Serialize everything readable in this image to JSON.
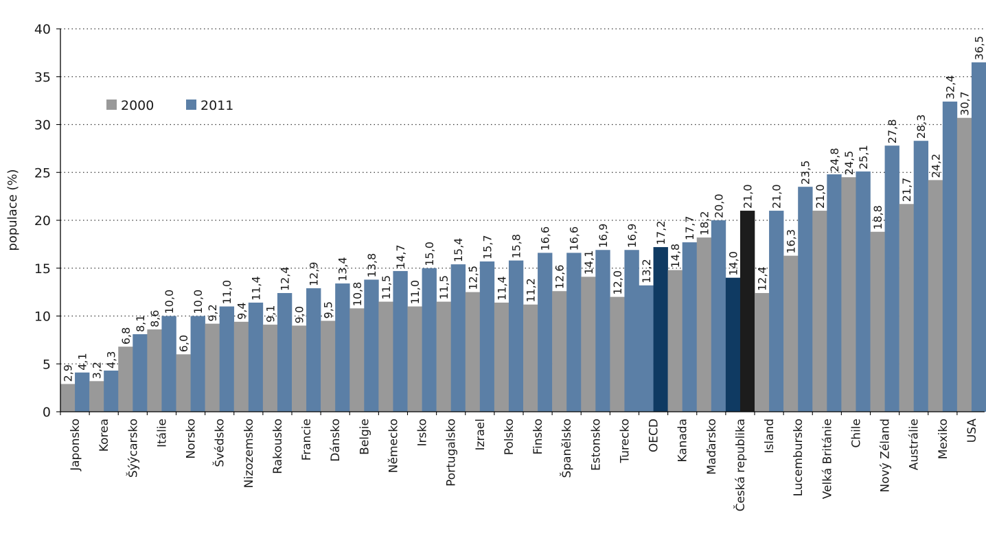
{
  "chart_data": {
    "type": "bar",
    "title": "",
    "xlabel": "",
    "ylabel": "populace (%)",
    "ylim": [
      0,
      40
    ],
    "yticks": [
      0,
      5,
      10,
      15,
      20,
      25,
      30,
      35,
      40
    ],
    "grid": "horizontal-dotted",
    "legend_position": "top-left",
    "categories": [
      "Japonsko",
      "Korea",
      "Šýýcarsko",
      "Itálie",
      "Norsko",
      "Švédsko",
      "Nizozemsko",
      "Rakousko",
      "Francie",
      "Dánsko",
      "Belgie",
      "Německo",
      "Irsko",
      "Portugalsko",
      "Izrael",
      "Polsko",
      "Finsko",
      "Španělsko",
      "Estonsko",
      "Turecko",
      "OECD",
      "Kanada",
      "Maďarsko",
      "Česká republika",
      "Island",
      "Lucembursko",
      "Velká Británie",
      "Chile",
      "Nový Zéland",
      "Austrálie",
      "Mexiko",
      "USA"
    ],
    "series": [
      {
        "name": "2000",
        "color": "#999999",
        "values": [
          2.9,
          3.2,
          6.8,
          8.6,
          6.0,
          9.2,
          9.4,
          9.1,
          9.0,
          9.5,
          10.8,
          11.5,
          11.0,
          11.5,
          12.5,
          11.4,
          11.2,
          12.6,
          14.1,
          12.0,
          13.2,
          14.8,
          18.2,
          14.0,
          12.4,
          16.3,
          21.0,
          24.5,
          18.8,
          21.7,
          24.2,
          30.7
        ],
        "labels": [
          "2,9",
          "3,2",
          "6,8",
          "8,6",
          "6,0",
          "9,2",
          "9,4",
          "9,1",
          "9,0",
          "9,5",
          "10,8",
          "11,5",
          "11,0",
          "11,5",
          "12,5",
          "11,4",
          "11,2",
          "12,6",
          "14,1",
          "12,0",
          "13,2",
          "14,8",
          "18,2",
          "14,0",
          "12,4",
          "16,3",
          "21,0",
          "24,5",
          "18,8",
          "21,7",
          "24,2",
          "30,7"
        ]
      },
      {
        "name": "2011",
        "color": "#5b7fa6",
        "values": [
          4.1,
          4.3,
          8.1,
          10.0,
          10.0,
          11.0,
          11.4,
          12.4,
          12.9,
          13.4,
          13.8,
          14.7,
          15.0,
          15.4,
          15.7,
          15.8,
          16.6,
          16.6,
          16.9,
          16.9,
          17.2,
          17.7,
          20.0,
          21.0,
          21.0,
          23.5,
          24.8,
          25.1,
          27.8,
          28.3,
          32.4,
          36.5
        ],
        "labels": [
          "4,1",
          "4,3",
          "8,1",
          "10,0",
          "10,0",
          "11,0",
          "11,4",
          "12,4",
          "12,9",
          "13,4",
          "13,8",
          "14,7",
          "15,0",
          "15,4",
          "15,7",
          "15,8",
          "16,6",
          "16,6",
          "16,9",
          "16,9",
          "17,2",
          "17,7",
          "20,0",
          "21,0",
          "21,0",
          "23,5",
          "24,8",
          "25,1",
          "27,8",
          "28,3",
          "32,4",
          "36,5"
        ]
      }
    ],
    "highlights": {
      "OECD": {
        "2000": "#5b7fa6",
        "2011": "#0f3a62"
      },
      "Česká republika": {
        "2000": "#0f3a62",
        "2011": "#1c1c1c"
      }
    },
    "colors": {
      "series_2000": "#999999",
      "series_2011": "#5b7fa6",
      "highlight_dark_blue": "#0f3a62",
      "highlight_black": "#1c1c1c"
    }
  }
}
